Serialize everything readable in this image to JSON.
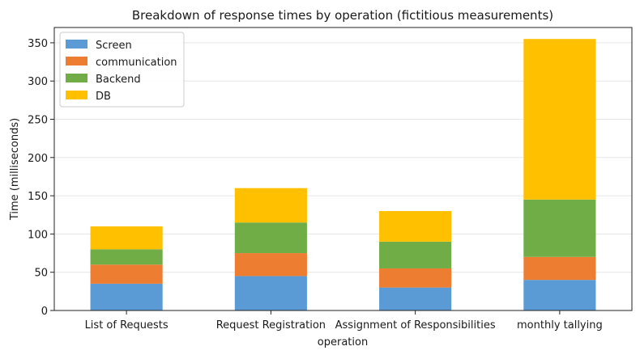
{
  "chart_data": {
    "type": "bar",
    "stacked": true,
    "title": "Breakdown of response times by operation (fictitious measurements)",
    "xlabel": "operation",
    "ylabel": "Time (milliseconds)",
    "categories": [
      "List of Requests",
      "Request Registration",
      "Assignment of Responsibilities",
      "monthly tallying"
    ],
    "series": [
      {
        "name": "Screen",
        "color": "#5b9bd5",
        "values": [
          35,
          45,
          30,
          40
        ]
      },
      {
        "name": "communication",
        "color": "#ed7d31",
        "values": [
          25,
          30,
          25,
          30
        ]
      },
      {
        "name": "Backend",
        "color": "#70ad47",
        "values": [
          20,
          40,
          35,
          75
        ]
      },
      {
        "name": "DB",
        "color": "#ffc000",
        "values": [
          30,
          45,
          40,
          210
        ]
      }
    ],
    "ylim": [
      0,
      370
    ],
    "yticks": [
      0,
      50,
      100,
      150,
      200,
      250,
      300,
      350
    ],
    "grid": true,
    "legend_position": "top-left"
  }
}
